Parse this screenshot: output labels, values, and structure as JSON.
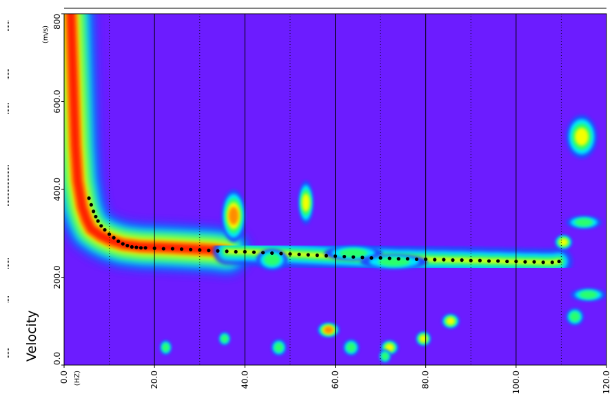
{
  "chart_data": {
    "type": "heatmap",
    "title": "",
    "xlabel": "(HZ)",
    "ylabel": "Velocity",
    "y_unit": "(m/s)",
    "xlim": [
      0,
      120
    ],
    "ylim": [
      0,
      800
    ],
    "x_ticks": [
      {
        "value": 0,
        "label": "0.0"
      },
      {
        "value": 20,
        "label": "20.0"
      },
      {
        "value": 40,
        "label": "40.0"
      },
      {
        "value": 60,
        "label": "60.0"
      },
      {
        "value": 80,
        "label": "80.0"
      },
      {
        "value": 100,
        "label": "100.0"
      },
      {
        "value": 120,
        "label": "120.0"
      }
    ],
    "y_ticks": [
      {
        "value": 0,
        "label": "0.0"
      },
      {
        "value": 200,
        "label": "200.0"
      },
      {
        "value": 400,
        "label": "400.0"
      },
      {
        "value": 600,
        "label": "600.0"
      },
      {
        "value": 800,
        "label": "800"
      }
    ],
    "grid": {
      "solid_x": [
        20,
        40,
        60,
        80,
        100
      ],
      "dotted_x": [
        10,
        30,
        50,
        70,
        90,
        110
      ]
    },
    "colors": {
      "background": "#6c1cff",
      "band_core": "#ff1e00",
      "band_orange": "#ff8c00",
      "band_yellow": "#f5ff00",
      "band_green": "#2bff6a",
      "band_cyan": "#00e6ff",
      "band_blue": "#1a4dff",
      "picks": "#000000"
    },
    "dispersion_band": [
      {
        "x": 1.5,
        "y": 800
      },
      {
        "x": 2,
        "y": 650
      },
      {
        "x": 2.5,
        "y": 500
      },
      {
        "x": 3,
        "y": 420
      },
      {
        "x": 4,
        "y": 360
      },
      {
        "x": 5,
        "y": 330
      },
      {
        "x": 6,
        "y": 310
      },
      {
        "x": 8,
        "y": 295
      },
      {
        "x": 10,
        "y": 285
      },
      {
        "x": 13,
        "y": 275
      },
      {
        "x": 17,
        "y": 270
      },
      {
        "x": 22,
        "y": 268
      },
      {
        "x": 28,
        "y": 265
      },
      {
        "x": 33,
        "y": 262
      },
      {
        "x": 36,
        "y": 258
      }
    ],
    "picks": [
      {
        "x": 5.5,
        "y": 380
      },
      {
        "x": 6,
        "y": 365
      },
      {
        "x": 6.5,
        "y": 350
      },
      {
        "x": 7,
        "y": 338
      },
      {
        "x": 7.5,
        "y": 328
      },
      {
        "x": 8.2,
        "y": 317
      },
      {
        "x": 9,
        "y": 308
      },
      {
        "x": 10,
        "y": 298
      },
      {
        "x": 11,
        "y": 290
      },
      {
        "x": 12,
        "y": 282
      },
      {
        "x": 13,
        "y": 276
      },
      {
        "x": 14,
        "y": 272
      },
      {
        "x": 15,
        "y": 269
      },
      {
        "x": 16,
        "y": 268
      },
      {
        "x": 17,
        "y": 267
      },
      {
        "x": 18,
        "y": 267
      },
      {
        "x": 20,
        "y": 266
      },
      {
        "x": 22,
        "y": 265
      },
      {
        "x": 24,
        "y": 265
      },
      {
        "x": 26,
        "y": 264
      },
      {
        "x": 28,
        "y": 263
      },
      {
        "x": 30,
        "y": 262
      },
      {
        "x": 32,
        "y": 261
      },
      {
        "x": 34,
        "y": 260
      },
      {
        "x": 36,
        "y": 259
      },
      {
        "x": 38,
        "y": 258
      },
      {
        "x": 40,
        "y": 258
      },
      {
        "x": 42,
        "y": 257
      },
      {
        "x": 44,
        "y": 256
      },
      {
        "x": 46,
        "y": 255
      },
      {
        "x": 48,
        "y": 254
      },
      {
        "x": 50,
        "y": 253
      },
      {
        "x": 52,
        "y": 252
      },
      {
        "x": 54,
        "y": 251
      },
      {
        "x": 56,
        "y": 250
      },
      {
        "x": 58,
        "y": 249
      },
      {
        "x": 60,
        "y": 248
      },
      {
        "x": 62,
        "y": 247
      },
      {
        "x": 64,
        "y": 246
      },
      {
        "x": 66,
        "y": 245
      },
      {
        "x": 68,
        "y": 244
      },
      {
        "x": 70,
        "y": 244
      },
      {
        "x": 72,
        "y": 243
      },
      {
        "x": 74,
        "y": 242
      },
      {
        "x": 76,
        "y": 242
      },
      {
        "x": 78,
        "y": 241
      },
      {
        "x": 80,
        "y": 241
      },
      {
        "x": 82,
        "y": 240
      },
      {
        "x": 84,
        "y": 240
      },
      {
        "x": 86,
        "y": 239
      },
      {
        "x": 88,
        "y": 239
      },
      {
        "x": 90,
        "y": 238
      },
      {
        "x": 92,
        "y": 238
      },
      {
        "x": 94,
        "y": 237
      },
      {
        "x": 96,
        "y": 237
      },
      {
        "x": 98,
        "y": 236
      },
      {
        "x": 100,
        "y": 236
      },
      {
        "x": 102,
        "y": 235
      },
      {
        "x": 104,
        "y": 235
      },
      {
        "x": 106,
        "y": 234
      },
      {
        "x": 108,
        "y": 234
      },
      {
        "x": 109.5,
        "y": 236
      }
    ],
    "hotspots": [
      {
        "x": 37.5,
        "y": 340,
        "rx": 2.2,
        "ry": 55,
        "intensity": "orange"
      },
      {
        "x": 53.5,
        "y": 370,
        "rx": 1.2,
        "ry": 45,
        "intensity": "yellow"
      },
      {
        "x": 58.5,
        "y": 80,
        "rx": 2.0,
        "ry": 12,
        "intensity": "orange"
      },
      {
        "x": 85.5,
        "y": 100,
        "rx": 1.5,
        "ry": 12,
        "intensity": "yellow"
      },
      {
        "x": 79.5,
        "y": 60,
        "rx": 1.2,
        "ry": 12,
        "intensity": "yellow"
      },
      {
        "x": 72,
        "y": 40,
        "rx": 1.5,
        "ry": 12,
        "intensity": "yellow"
      },
      {
        "x": 114.5,
        "y": 520,
        "rx": 3.0,
        "ry": 45,
        "intensity": "yellow"
      },
      {
        "x": 110.5,
        "y": 280,
        "rx": 1.5,
        "ry": 12,
        "intensity": "yellow"
      },
      {
        "x": 115,
        "y": 325,
        "rx": 3.5,
        "ry": 10,
        "intensity": "green"
      },
      {
        "x": 116,
        "y": 160,
        "rx": 3.5,
        "ry": 10,
        "intensity": "green"
      },
      {
        "x": 113,
        "y": 110,
        "rx": 1.5,
        "ry": 15,
        "intensity": "green"
      },
      {
        "x": 64,
        "y": 255,
        "rx": 6,
        "ry": 12,
        "intensity": "green"
      },
      {
        "x": 73,
        "y": 235,
        "rx": 7,
        "ry": 12,
        "intensity": "green"
      },
      {
        "x": 46,
        "y": 240,
        "rx": 3,
        "ry": 20,
        "intensity": "green"
      },
      {
        "x": 22.5,
        "y": 40,
        "rx": 0.8,
        "ry": 12,
        "intensity": "green"
      },
      {
        "x": 35.5,
        "y": 60,
        "rx": 0.8,
        "ry": 10,
        "intensity": "green"
      },
      {
        "x": 47.5,
        "y": 40,
        "rx": 1.2,
        "ry": 14,
        "intensity": "green"
      },
      {
        "x": 63.5,
        "y": 40,
        "rx": 1.3,
        "ry": 14,
        "intensity": "green"
      },
      {
        "x": 71,
        "y": 20,
        "rx": 0.8,
        "ry": 10,
        "intensity": "green"
      }
    ]
  }
}
